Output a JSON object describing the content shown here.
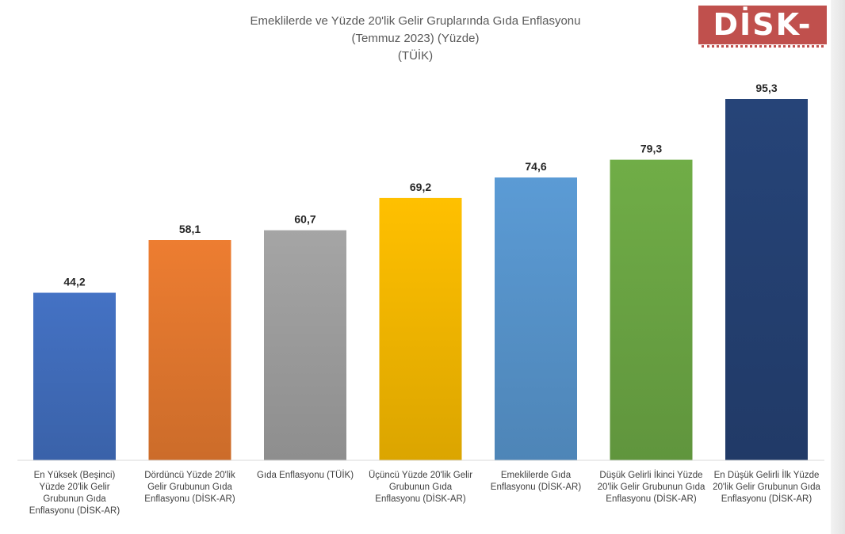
{
  "chart_data": {
    "type": "bar",
    "title": "Emeklilerde ve Yüzde 20'lik Gelir Gruplarında Gıda Enflasyonu",
    "subtitle": "(Temmuz 2023) (Yüzde)",
    "source": "(TÜİK)",
    "logo_text": "DİSK-AR",
    "categories": [
      "En Yüksek (Beşinci) Yüzde 20'lik Gelir Grubunun Gıda Enflasyonu (DİSK-AR)",
      "Dördüncü Yüzde 20'lik Gelir Grubunun Gıda Enflasyonu (DİSK-AR)",
      "Gıda Enflasyonu (TÜİK)",
      "Üçüncü Yüzde 20'lik Gelir Grubunun Gıda Enflasyonu (DİSK-AR)",
      "Emeklilerde Gıda Enflasyonu (DİSK-AR)",
      "Düşük Gelirli İkinci Yüzde 20'lik Gelir Grubunun Gıda Enflasyonu (DİSK-AR)",
      "En Düşük Gelirli İlk Yüzde 20'lik Gelir Grubunun Gıda Enflasyonu (DİSK-AR)"
    ],
    "values": [
      44.2,
      58.1,
      60.7,
      69.2,
      74.6,
      79.3,
      95.3
    ],
    "value_labels": [
      "44,2",
      "58,1",
      "60,7",
      "69,2",
      "74,6",
      "79,3",
      "95,3"
    ],
    "colors": [
      "#4472c4",
      "#ed7d31",
      "#a5a5a5",
      "#ffc000",
      "#5b9bd5",
      "#70ad47",
      "#264478"
    ],
    "ylim": [
      0,
      100
    ],
    "grid": false,
    "legend": "none"
  }
}
